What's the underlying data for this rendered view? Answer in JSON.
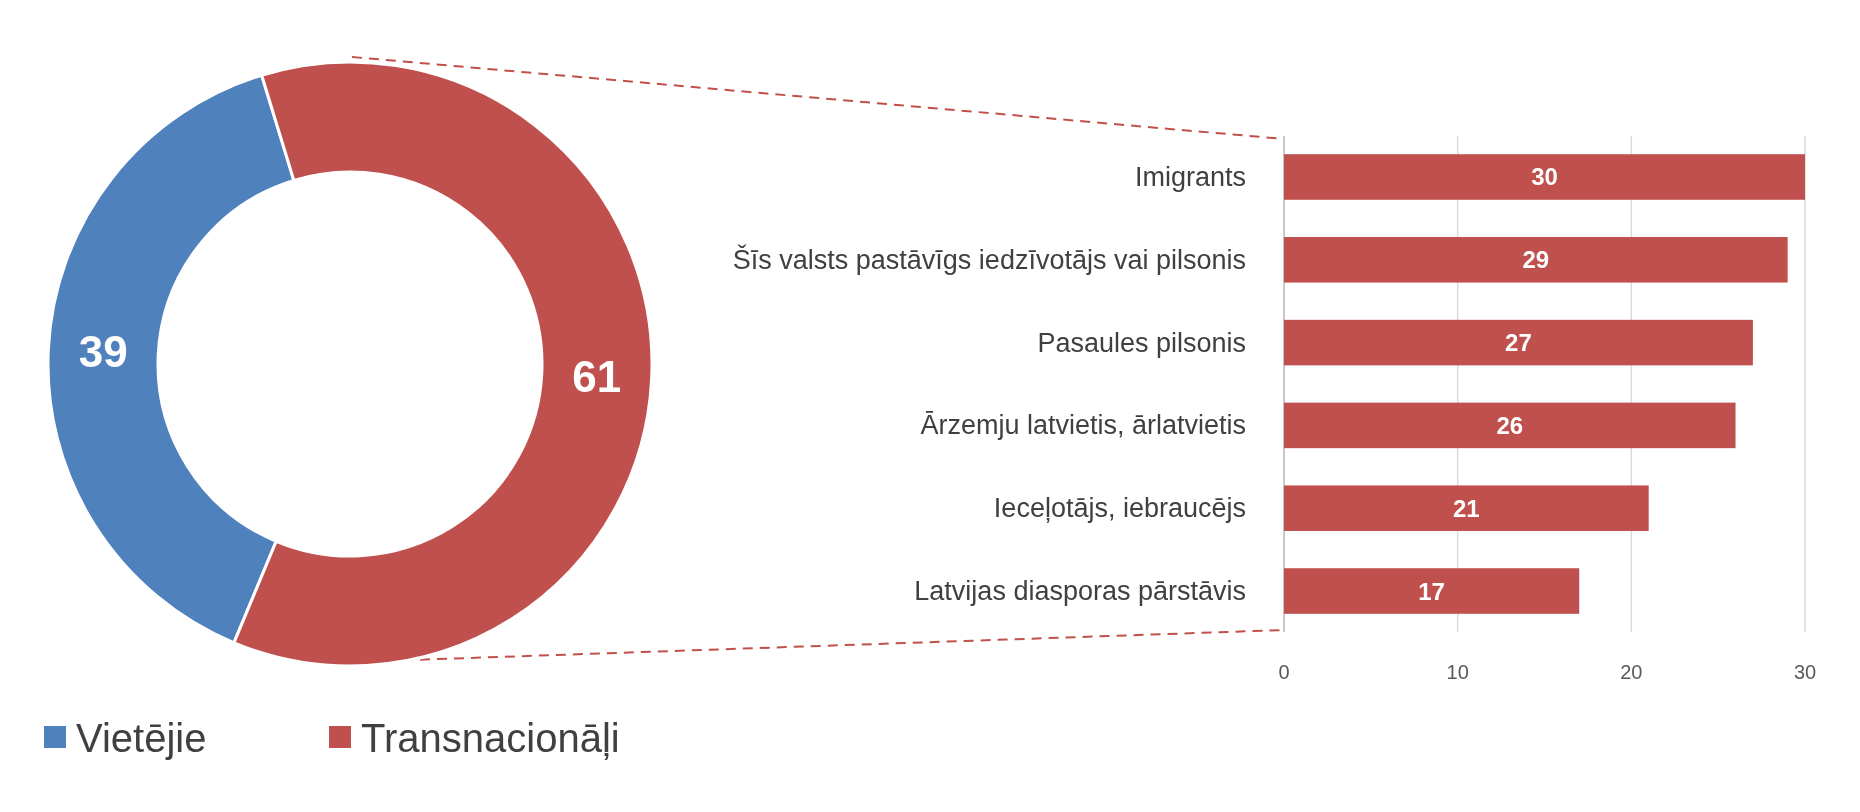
{
  "chart_data": [
    {
      "type": "donut",
      "categories": [
        "Vietējie",
        "Transnacionāļi"
      ],
      "values": [
        39,
        61
      ],
      "colors": [
        "#4f81bd",
        "#c0504d"
      ],
      "data_labels": true,
      "legend": "bottom left"
    },
    {
      "type": "bar",
      "orientation": "horizontal",
      "categories": [
        "Imigrants",
        "Šīs valsts pastāvīgs iedzīvotājs vai pilsonis",
        "Pasaules pilsonis",
        "Ārzemju latvietis, ārlatvietis",
        "Ieceļotājs, iebraucējs",
        "Latvijas diasporas pārstāvis"
      ],
      "values": [
        30,
        29,
        27,
        26,
        21,
        17
      ],
      "color": "#c0504d",
      "xlim": [
        0,
        30
      ],
      "xticks": [
        0,
        10,
        20,
        30
      ],
      "grid": "x",
      "data_labels": true
    }
  ]
}
